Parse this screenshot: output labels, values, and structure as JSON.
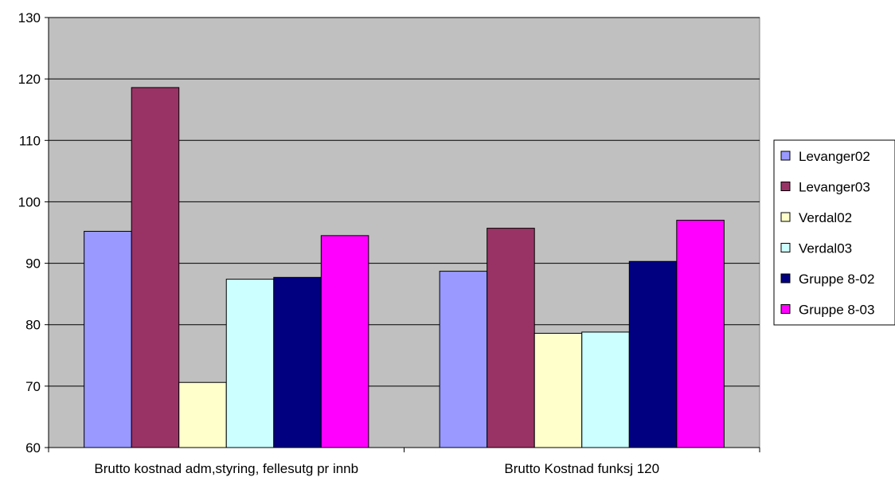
{
  "chart_data": {
    "type": "bar",
    "title": "",
    "xlabel": "",
    "ylabel": "",
    "categories": [
      "Brutto kostnad adm,styring, fellesutg pr innb",
      "Brutto Kostnad funksj 120"
    ],
    "ylim": [
      60,
      130
    ],
    "yticks": [
      60,
      70,
      80,
      90,
      100,
      110,
      120,
      130
    ],
    "grid": true,
    "legend_position": "right",
    "plot_background": "#c0c0c0",
    "series": [
      {
        "name": "Levanger02",
        "color": "#9999ff",
        "values": [
          95.2,
          88.7
        ]
      },
      {
        "name": "Levanger03",
        "color": "#993366",
        "values": [
          118.6,
          95.7
        ]
      },
      {
        "name": "Verdal02",
        "color": "#ffffcc",
        "values": [
          70.6,
          78.6
        ]
      },
      {
        "name": "Verdal03",
        "color": "#ccffff",
        "values": [
          87.4,
          78.8
        ]
      },
      {
        "name": "Gruppe 8-02",
        "color": "#000080",
        "values": [
          87.7,
          90.3
        ]
      },
      {
        "name": "Gruppe 8-03",
        "color": "#ff00ff",
        "values": [
          94.5,
          97.0
        ]
      }
    ]
  }
}
